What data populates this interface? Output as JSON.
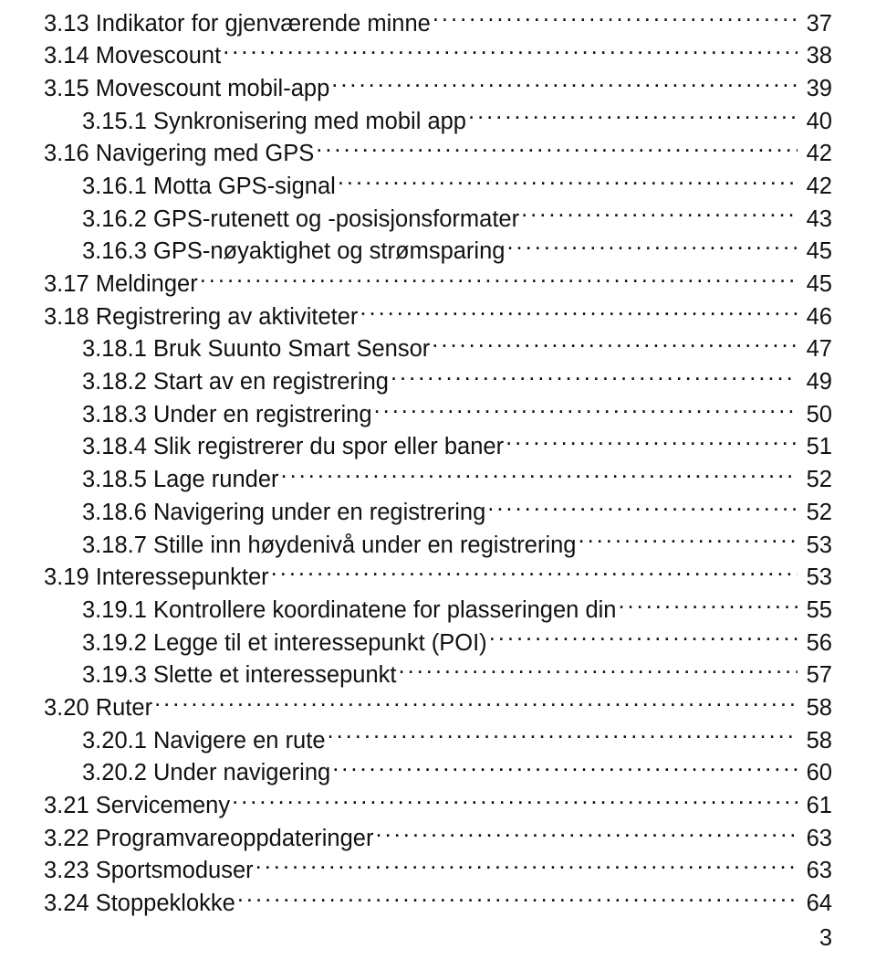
{
  "toc": [
    {
      "level": 1,
      "label": "3.13 Indikator for gjenværende minne",
      "page": "37"
    },
    {
      "level": 1,
      "label": "3.14 Movescount",
      "page": "38"
    },
    {
      "level": 1,
      "label": "3.15 Movescount mobil-app",
      "page": "39"
    },
    {
      "level": 2,
      "label": "3.15.1 Synkronisering med mobil app",
      "page": "40"
    },
    {
      "level": 1,
      "label": "3.16 Navigering med GPS",
      "page": "42"
    },
    {
      "level": 2,
      "label": "3.16.1 Motta GPS-signal",
      "page": "42"
    },
    {
      "level": 2,
      "label": "3.16.2 GPS-rutenett og -posisjonsformater",
      "page": "43"
    },
    {
      "level": 2,
      "label": "3.16.3 GPS-nøyaktighet og strømsparing",
      "page": "45"
    },
    {
      "level": 1,
      "label": "3.17 Meldinger",
      "page": "45"
    },
    {
      "level": 1,
      "label": "3.18 Registrering av aktiviteter",
      "page": "46"
    },
    {
      "level": 2,
      "label": "3.18.1 Bruk Suunto Smart Sensor",
      "page": "47"
    },
    {
      "level": 2,
      "label": "3.18.2 Start av en registrering",
      "page": "49"
    },
    {
      "level": 2,
      "label": "3.18.3 Under en registrering",
      "page": "50"
    },
    {
      "level": 2,
      "label": "3.18.4 Slik registrerer du spor eller baner",
      "page": "51"
    },
    {
      "level": 2,
      "label": "3.18.5 Lage runder",
      "page": "52"
    },
    {
      "level": 2,
      "label": "3.18.6 Navigering under en registrering",
      "page": "52"
    },
    {
      "level": 2,
      "label": "3.18.7 Stille inn høydenivå under en registrering",
      "page": "53"
    },
    {
      "level": 1,
      "label": "3.19 Interessepunkter",
      "page": "53"
    },
    {
      "level": 2,
      "label": "3.19.1 Kontrollere koordinatene for plasseringen din",
      "page": "55"
    },
    {
      "level": 2,
      "label": "3.19.2 Legge til et interessepunkt (POI)",
      "page": "56"
    },
    {
      "level": 2,
      "label": "3.19.3 Slette et interessepunkt",
      "page": "57"
    },
    {
      "level": 1,
      "label": "3.20 Ruter",
      "page": "58"
    },
    {
      "level": 2,
      "label": "3.20.1 Navigere en rute",
      "page": "58"
    },
    {
      "level": 2,
      "label": "3.20.2 Under navigering",
      "page": "60"
    },
    {
      "level": 1,
      "label": "3.21 Servicemeny",
      "page": "61"
    },
    {
      "level": 1,
      "label": "3.22 Programvareoppdateringer",
      "page": "63"
    },
    {
      "level": 1,
      "label": "3.23 Sportsmoduser",
      "page": "63"
    },
    {
      "level": 1,
      "label": "3.24 Stoppeklokke",
      "page": "64"
    }
  ],
  "page_number": "3"
}
